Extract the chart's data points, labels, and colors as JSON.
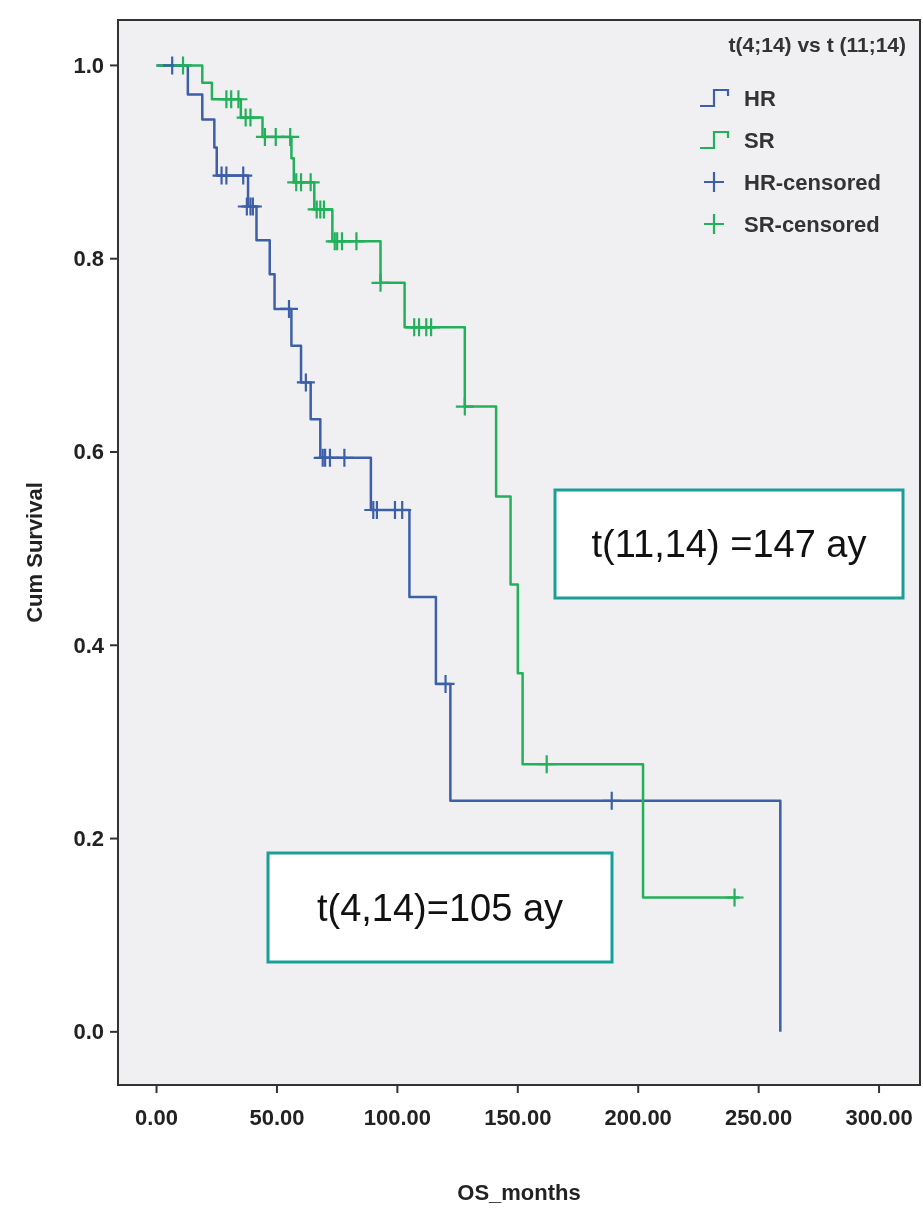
{
  "chart_data": {
    "type": "step",
    "legend_title": "t(4;14) vs t (11;14)",
    "xlabel": "OS_months",
    "ylabel": "Cum Survival",
    "xlim": [
      -16,
      317
    ],
    "ylim": [
      -0.055,
      1.047
    ],
    "xticks": [
      {
        "value": 0,
        "label": "0.00"
      },
      {
        "value": 50,
        "label": "50.00"
      },
      {
        "value": 100,
        "label": "100.00"
      },
      {
        "value": 150,
        "label": "150.00"
      },
      {
        "value": 200,
        "label": "200.00"
      },
      {
        "value": 250,
        "label": "250.00"
      },
      {
        "value": 300,
        "label": "300.00"
      }
    ],
    "yticks": [
      {
        "value": 0,
        "label": "0.0"
      },
      {
        "value": 0.2,
        "label": "0.2"
      },
      {
        "value": 0.4,
        "label": "0.4"
      },
      {
        "value": 0.6,
        "label": "0.6"
      },
      {
        "value": 0.8,
        "label": "0.8"
      },
      {
        "value": 1,
        "label": "1.0"
      }
    ],
    "grid": false,
    "legend": "top right",
    "annotations": [
      "t(11,14) =147 ay",
      "t(4,14)=105 ay"
    ],
    "series": [
      {
        "name": "HR",
        "color": "#3d5fa8",
        "x": [
          0,
          13,
          19,
          24,
          25,
          38,
          41.5,
          47,
          49,
          56,
          60,
          64,
          68,
          89,
          105,
          116,
          122,
          259
        ],
        "values": [
          1,
          0.97,
          0.944,
          0.915,
          0.886,
          0.854,
          0.819,
          0.784,
          0.748,
          0.71,
          0.672,
          0.634,
          0.594,
          0.54,
          0.45,
          0.36,
          0.239,
          0
        ]
      },
      {
        "name": "SR",
        "color": "#22b05a",
        "x": [
          0,
          19,
          23,
          35,
          44,
          56,
          57,
          65.5,
          73,
          93,
          103,
          128,
          141,
          147,
          150,
          152,
          202,
          242
        ],
        "values": [
          1,
          0.982,
          0.965,
          0.946,
          0.926,
          0.904,
          0.879,
          0.851,
          0.818,
          0.775,
          0.729,
          0.647,
          0.554,
          0.463,
          0.371,
          0.277,
          0.139,
          0.139
        ]
      },
      {
        "name": "HR-censored",
        "type": "scatter",
        "marker": "cross",
        "color": "#3d5fa8",
        "x": [
          6.5,
          27,
          29,
          36,
          37.5,
          39,
          40,
          55,
          62,
          69,
          70,
          72,
          78,
          90,
          91.5,
          99,
          102,
          120,
          189
        ],
        "values": [
          1,
          0.886,
          0.886,
          0.886,
          0.854,
          0.854,
          0.854,
          0.748,
          0.672,
          0.594,
          0.594,
          0.594,
          0.594,
          0.54,
          0.54,
          0.54,
          0.54,
          0.36,
          0.239
        ]
      },
      {
        "name": "SR-censored",
        "type": "scatter",
        "marker": "cross",
        "color": "#22b05a",
        "x": [
          11,
          29,
          31,
          34,
          37,
          39,
          45,
          49.5,
          55.5,
          58,
          60,
          64,
          66.5,
          68,
          69.5,
          74,
          75,
          77,
          83,
          93,
          107,
          109,
          112,
          114,
          128,
          162,
          240
        ],
        "values": [
          1,
          0.965,
          0.965,
          0.965,
          0.946,
          0.946,
          0.926,
          0.926,
          0.926,
          0.879,
          0.879,
          0.879,
          0.851,
          0.851,
          0.851,
          0.818,
          0.818,
          0.818,
          0.818,
          0.775,
          0.729,
          0.729,
          0.729,
          0.729,
          0.647,
          0.277,
          0.139
        ]
      }
    ]
  }
}
